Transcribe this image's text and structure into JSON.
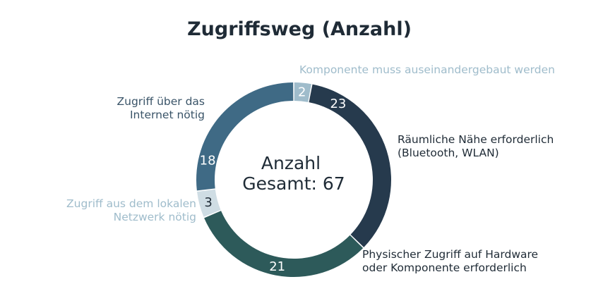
{
  "chart_data": {
    "type": "pie",
    "variant": "donut",
    "title": "Zugriffsweg (Anzahl)",
    "center_label": [
      "Anzahl",
      "Gesamt: 67"
    ],
    "total": 67,
    "slices": [
      {
        "value": 2,
        "label_lines": [
          "Komponente muss auseinandergebaut werden"
        ],
        "color": "#9fbccb",
        "value_color": "#ffffff",
        "label_color": "#9fbccb"
      },
      {
        "value": 23,
        "label_lines": [
          "Räumliche Nähe erforderlich",
          "(Bluetooth, WLAN)"
        ],
        "color": "#263a4d",
        "value_color": "#ffffff",
        "label_color": "#1f2b36"
      },
      {
        "value": 21,
        "label_lines": [
          "Physischer Zugriff auf Hardware",
          "oder Komponente erforderlich"
        ],
        "color": "#2d5a5a",
        "value_color": "#ffffff",
        "label_color": "#1f2b36"
      },
      {
        "value": 3,
        "label_lines": [
          "Zugriff aus dem lokalen",
          "Netzwerk nötig"
        ],
        "color": "#cfdde4",
        "value_color": "#1f2b36",
        "label_color": "#9fbccb"
      },
      {
        "value": 18,
        "label_lines": [
          "Zugriff über das",
          "Internet nötig"
        ],
        "color": "#3f6a85",
        "value_color": "#ffffff",
        "label_color": "#3a5468"
      }
    ]
  }
}
